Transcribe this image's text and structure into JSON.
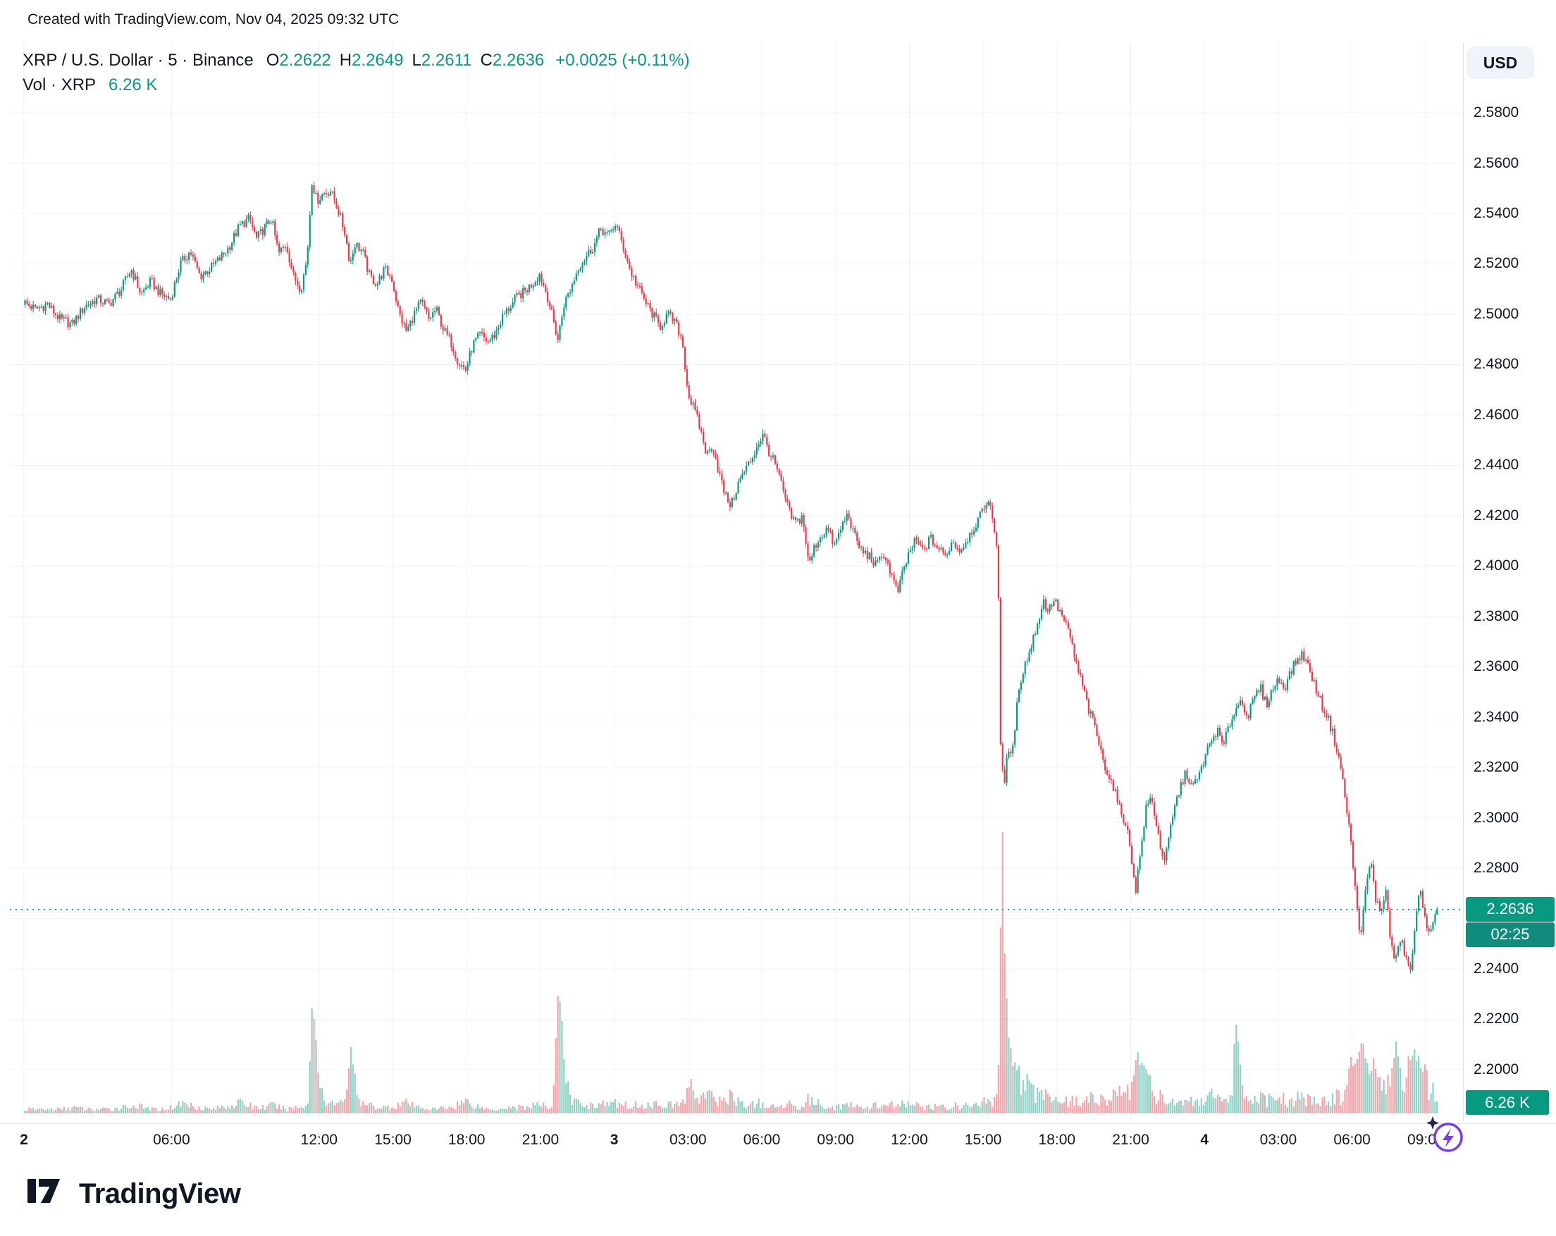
{
  "attribution": "Created with TradingView.com, Nov 04, 2025 09:32 UTC",
  "currency_button": "USD",
  "legend": {
    "title": "XRP / U.S. Dollar · 5 · Binance",
    "open_label": "O",
    "open": "2.2622",
    "high_label": "H",
    "high": "2.2649",
    "low_label": "L",
    "low": "2.2611",
    "close_label": "C",
    "close": "2.2636",
    "change": "+0.0025 (+0.11%)",
    "volume_label": "Vol · XRP",
    "volume_value": "6.26 K"
  },
  "price_scale": {
    "ticks": [
      "2.5800",
      "2.5600",
      "2.5400",
      "2.5200",
      "2.5000",
      "2.4800",
      "2.4600",
      "2.4400",
      "2.4200",
      "2.4000",
      "2.3800",
      "2.3600",
      "2.3400",
      "2.3200",
      "2.3000",
      "2.2800",
      "2.2400",
      "2.2200",
      "2.2000"
    ],
    "last_price_label": "2.2636",
    "countdown": "02:25",
    "volume_badge": "6.26 K"
  },
  "time_scale": {
    "labels": [
      {
        "h": 0,
        "label": "2",
        "day": true
      },
      {
        "h": 6,
        "label": "06:00",
        "day": false
      },
      {
        "h": 12,
        "label": "12:00",
        "day": false
      },
      {
        "h": 15,
        "label": "15:00",
        "day": false
      },
      {
        "h": 18,
        "label": "18:00",
        "day": false
      },
      {
        "h": 21,
        "label": "21:00",
        "day": false
      },
      {
        "h": 24,
        "label": "3",
        "day": true
      },
      {
        "h": 27,
        "label": "03:00",
        "day": false
      },
      {
        "h": 30,
        "label": "06:00",
        "day": false
      },
      {
        "h": 33,
        "label": "09:00",
        "day": false
      },
      {
        "h": 36,
        "label": "12:00",
        "day": false
      },
      {
        "h": 39,
        "label": "15:00",
        "day": false
      },
      {
        "h": 42,
        "label": "18:00",
        "day": false
      },
      {
        "h": 45,
        "label": "21:00",
        "day": false
      },
      {
        "h": 48,
        "label": "4",
        "day": true
      },
      {
        "h": 51,
        "label": "03:00",
        "day": false
      },
      {
        "h": 54,
        "label": "06:00",
        "day": false
      },
      {
        "h": 57,
        "label": "09:00",
        "day": false
      }
    ]
  },
  "footer": {
    "brand": "TradingView"
  },
  "chart_data": {
    "type": "candlestick",
    "symbol": "XRP / U.S. Dollar",
    "interval": "5",
    "exchange": "Binance",
    "title": "XRP / U.S. Dollar · 5 · Binance",
    "ohlc": {
      "open": 2.2622,
      "high": 2.2649,
      "low": 2.2611,
      "close": 2.2636,
      "change": 0.0025,
      "change_pct": 0.11
    },
    "last_price": 2.2636,
    "last_volume_k": 6.26,
    "countdown": "02:25",
    "y_axis_visible_range": [
      2.2,
      2.58
    ],
    "x_span": [
      "Nov 2 00:00 UTC",
      "Nov 4 09:30 UTC"
    ],
    "grid": true,
    "colors": {
      "up": "#089981",
      "down": "#F23645",
      "price_line": "#089981"
    },
    "price_waypoints_note": "Each waypoint = [hours since Nov 2 00:00 UTC, price USD, volume in K XRP] read off the chart; 5-min candles interpolate between waypoints.",
    "price_waypoints": [
      [
        0,
        2.505,
        2
      ],
      [
        0.5,
        2.502,
        2
      ],
      [
        1,
        2.504,
        2
      ],
      [
        1.5,
        2.498,
        2
      ],
      [
        2,
        2.496,
        3
      ],
      [
        2.5,
        2.503,
        2
      ],
      [
        3,
        2.506,
        2
      ],
      [
        3.5,
        2.504,
        2
      ],
      [
        4,
        2.51,
        3
      ],
      [
        4.4,
        2.518,
        4
      ],
      [
        4.8,
        2.508,
        3
      ],
      [
        5.2,
        2.513,
        2
      ],
      [
        5.6,
        2.508,
        2
      ],
      [
        6,
        2.506,
        3
      ],
      [
        6.4,
        2.52,
        5
      ],
      [
        6.8,
        2.525,
        4
      ],
      [
        7.2,
        2.515,
        3
      ],
      [
        7.6,
        2.518,
        2
      ],
      [
        8,
        2.522,
        3
      ],
      [
        8.4,
        2.527,
        4
      ],
      [
        8.8,
        2.535,
        5
      ],
      [
        9.2,
        2.538,
        4
      ],
      [
        9.5,
        2.53,
        3
      ],
      [
        9.8,
        2.534,
        3
      ],
      [
        10.1,
        2.538,
        4
      ],
      [
        10.4,
        2.524,
        3
      ],
      [
        10.7,
        2.528,
        2
      ],
      [
        11,
        2.515,
        3
      ],
      [
        11.3,
        2.51,
        3
      ],
      [
        11.55,
        2.522,
        6
      ],
      [
        11.75,
        2.553,
        60
      ],
      [
        11.95,
        2.545,
        20
      ],
      [
        12.2,
        2.548,
        8
      ],
      [
        12.5,
        2.549,
        5
      ],
      [
        12.8,
        2.542,
        4
      ],
      [
        13.1,
        2.532,
        10
      ],
      [
        13.3,
        2.52,
        35
      ],
      [
        13.5,
        2.528,
        8
      ],
      [
        13.8,
        2.525,
        4
      ],
      [
        14.1,
        2.515,
        4
      ],
      [
        14.4,
        2.512,
        3
      ],
      [
        14.7,
        2.518,
        3
      ],
      [
        15,
        2.514,
        3
      ],
      [
        15.3,
        2.5,
        5
      ],
      [
        15.6,
        2.493,
        5
      ],
      [
        15.9,
        2.5,
        3
      ],
      [
        16.2,
        2.505,
        3
      ],
      [
        16.5,
        2.498,
        2
      ],
      [
        16.8,
        2.502,
        2
      ],
      [
        17.1,
        2.494,
        3
      ],
      [
        17.4,
        2.489,
        3
      ],
      [
        17.7,
        2.481,
        5
      ],
      [
        18,
        2.478,
        6
      ],
      [
        18.3,
        2.488,
        4
      ],
      [
        18.6,
        2.492,
        3
      ],
      [
        18.9,
        2.489,
        2
      ],
      [
        19.2,
        2.492,
        2
      ],
      [
        19.5,
        2.499,
        3
      ],
      [
        19.8,
        2.503,
        3
      ],
      [
        20.1,
        2.507,
        3
      ],
      [
        20.4,
        2.509,
        3
      ],
      [
        20.7,
        2.512,
        4
      ],
      [
        21,
        2.516,
        4
      ],
      [
        21.3,
        2.508,
        3
      ],
      [
        21.5,
        2.5,
        4
      ],
      [
        21.75,
        2.49,
        70
      ],
      [
        22,
        2.504,
        15
      ],
      [
        22.3,
        2.511,
        6
      ],
      [
        22.6,
        2.519,
        5
      ],
      [
        22.9,
        2.523,
        4
      ],
      [
        23.2,
        2.527,
        4
      ],
      [
        23.5,
        2.534,
        5
      ],
      [
        23.8,
        2.531,
        4
      ],
      [
        24.1,
        2.536,
        5
      ],
      [
        24.4,
        2.527,
        4
      ],
      [
        24.7,
        2.517,
        4
      ],
      [
        25,
        2.511,
        4
      ],
      [
        25.3,
        2.505,
        4
      ],
      [
        25.6,
        2.5,
        4
      ],
      [
        25.9,
        2.495,
        6
      ],
      [
        26.2,
        2.5,
        4
      ],
      [
        26.5,
        2.497,
        4
      ],
      [
        26.8,
        2.49,
        6
      ],
      [
        27.05,
        2.468,
        12
      ],
      [
        27.3,
        2.462,
        10
      ],
      [
        27.55,
        2.454,
        8
      ],
      [
        27.8,
        2.444,
        10
      ],
      [
        28.05,
        2.448,
        6
      ],
      [
        28.3,
        2.437,
        6
      ],
      [
        28.55,
        2.428,
        8
      ],
      [
        28.8,
        2.424,
        8
      ],
      [
        29.05,
        2.432,
        6
      ],
      [
        29.3,
        2.437,
        4
      ],
      [
        29.6,
        2.442,
        4
      ],
      [
        29.9,
        2.449,
        5
      ],
      [
        30.1,
        2.452,
        4
      ],
      [
        30.35,
        2.445,
        3
      ],
      [
        30.6,
        2.44,
        3
      ],
      [
        30.9,
        2.43,
        4
      ],
      [
        31.2,
        2.42,
        5
      ],
      [
        31.45,
        2.417,
        4
      ],
      [
        31.7,
        2.42,
        3
      ],
      [
        31.95,
        2.4,
        8
      ],
      [
        32.2,
        2.408,
        5
      ],
      [
        32.45,
        2.412,
        4
      ],
      [
        32.7,
        2.415,
        3
      ],
      [
        33,
        2.408,
        3
      ],
      [
        33.3,
        2.416,
        4
      ],
      [
        33.55,
        2.421,
        4
      ],
      [
        33.8,
        2.412,
        3
      ],
      [
        34.1,
        2.406,
        3
      ],
      [
        34.4,
        2.404,
        3
      ],
      [
        34.7,
        2.4,
        4
      ],
      [
        35,
        2.405,
        3
      ],
      [
        35.3,
        2.397,
        4
      ],
      [
        35.55,
        2.389,
        6
      ],
      [
        35.8,
        2.398,
        4
      ],
      [
        36.05,
        2.406,
        4
      ],
      [
        36.3,
        2.41,
        4
      ],
      [
        36.6,
        2.406,
        3
      ],
      [
        36.9,
        2.411,
        3
      ],
      [
        37.2,
        2.407,
        3
      ],
      [
        37.5,
        2.404,
        3
      ],
      [
        37.8,
        2.41,
        4
      ],
      [
        38.1,
        2.406,
        3
      ],
      [
        38.4,
        2.411,
        4
      ],
      [
        38.7,
        2.416,
        4
      ],
      [
        39,
        2.421,
        5
      ],
      [
        39.2,
        2.427,
        6
      ],
      [
        39.4,
        2.42,
        5
      ],
      [
        39.55,
        2.412,
        8
      ],
      [
        39.65,
        2.4,
        30
      ],
      [
        39.75,
        2.33,
        140
      ],
      [
        39.9,
        2.31,
        80
      ],
      [
        40.05,
        2.33,
        40
      ],
      [
        40.2,
        2.322,
        25
      ],
      [
        40.35,
        2.338,
        25
      ],
      [
        40.5,
        2.352,
        20
      ],
      [
        40.7,
        2.36,
        15
      ],
      [
        40.9,
        2.365,
        12
      ],
      [
        41.1,
        2.372,
        10
      ],
      [
        41.3,
        2.379,
        10
      ],
      [
        41.5,
        2.386,
        12
      ],
      [
        41.7,
        2.382,
        8
      ],
      [
        41.9,
        2.387,
        8
      ],
      [
        42.1,
        2.383,
        6
      ],
      [
        42.35,
        2.378,
        6
      ],
      [
        42.6,
        2.371,
        6
      ],
      [
        42.85,
        2.36,
        6
      ],
      [
        43.1,
        2.352,
        6
      ],
      [
        43.35,
        2.342,
        7
      ],
      [
        43.6,
        2.336,
        6
      ],
      [
        43.85,
        2.325,
        8
      ],
      [
        44.1,
        2.318,
        8
      ],
      [
        44.35,
        2.312,
        8
      ],
      [
        44.6,
        2.303,
        10
      ],
      [
        44.85,
        2.298,
        10
      ],
      [
        45.05,
        2.285,
        15
      ],
      [
        45.25,
        2.272,
        30
      ],
      [
        45.45,
        2.287,
        25
      ],
      [
        45.65,
        2.303,
        20
      ],
      [
        45.85,
        2.308,
        12
      ],
      [
        46.05,
        2.3,
        8
      ],
      [
        46.25,
        2.288,
        8
      ],
      [
        46.45,
        2.283,
        8
      ],
      [
        46.65,
        2.295,
        6
      ],
      [
        46.85,
        2.305,
        6
      ],
      [
        47.05,
        2.312,
        6
      ],
      [
        47.3,
        2.318,
        6
      ],
      [
        47.55,
        2.312,
        5
      ],
      [
        47.8,
        2.316,
        5
      ],
      [
        48.05,
        2.324,
        6
      ],
      [
        48.3,
        2.33,
        8
      ],
      [
        48.55,
        2.335,
        6
      ],
      [
        48.8,
        2.328,
        5
      ],
      [
        49.05,
        2.337,
        6
      ],
      [
        49.3,
        2.343,
        45
      ],
      [
        49.55,
        2.347,
        8
      ],
      [
        49.8,
        2.34,
        5
      ],
      [
        50.05,
        2.347,
        6
      ],
      [
        50.3,
        2.352,
        8
      ],
      [
        50.55,
        2.345,
        6
      ],
      [
        50.8,
        2.351,
        8
      ],
      [
        51.05,
        2.355,
        8
      ],
      [
        51.3,
        2.352,
        6
      ],
      [
        51.55,
        2.358,
        6
      ],
      [
        51.8,
        2.363,
        8
      ],
      [
        52.05,
        2.365,
        8
      ],
      [
        52.3,
        2.359,
        6
      ],
      [
        52.55,
        2.352,
        6
      ],
      [
        52.8,
        2.345,
        6
      ],
      [
        53.05,
        2.34,
        6
      ],
      [
        53.3,
        2.332,
        8
      ],
      [
        53.55,
        2.322,
        8
      ],
      [
        53.8,
        2.305,
        15
      ],
      [
        54,
        2.29,
        20
      ],
      [
        54.2,
        2.268,
        30
      ],
      [
        54.4,
        2.252,
        35
      ],
      [
        54.6,
        2.272,
        25
      ],
      [
        54.8,
        2.283,
        20
      ],
      [
        55,
        2.268,
        15
      ],
      [
        55.2,
        2.262,
        12
      ],
      [
        55.4,
        2.272,
        10
      ],
      [
        55.6,
        2.252,
        20
      ],
      [
        55.8,
        2.242,
        35
      ],
      [
        56,
        2.252,
        20
      ],
      [
        56.2,
        2.246,
        15
      ],
      [
        56.4,
        2.238,
        25
      ],
      [
        56.6,
        2.256,
        30
      ],
      [
        56.8,
        2.272,
        25
      ],
      [
        57,
        2.262,
        15
      ],
      [
        57.2,
        2.252,
        12
      ],
      [
        57.35,
        2.258,
        10
      ],
      [
        57.5,
        2.2636,
        6.26
      ]
    ]
  }
}
